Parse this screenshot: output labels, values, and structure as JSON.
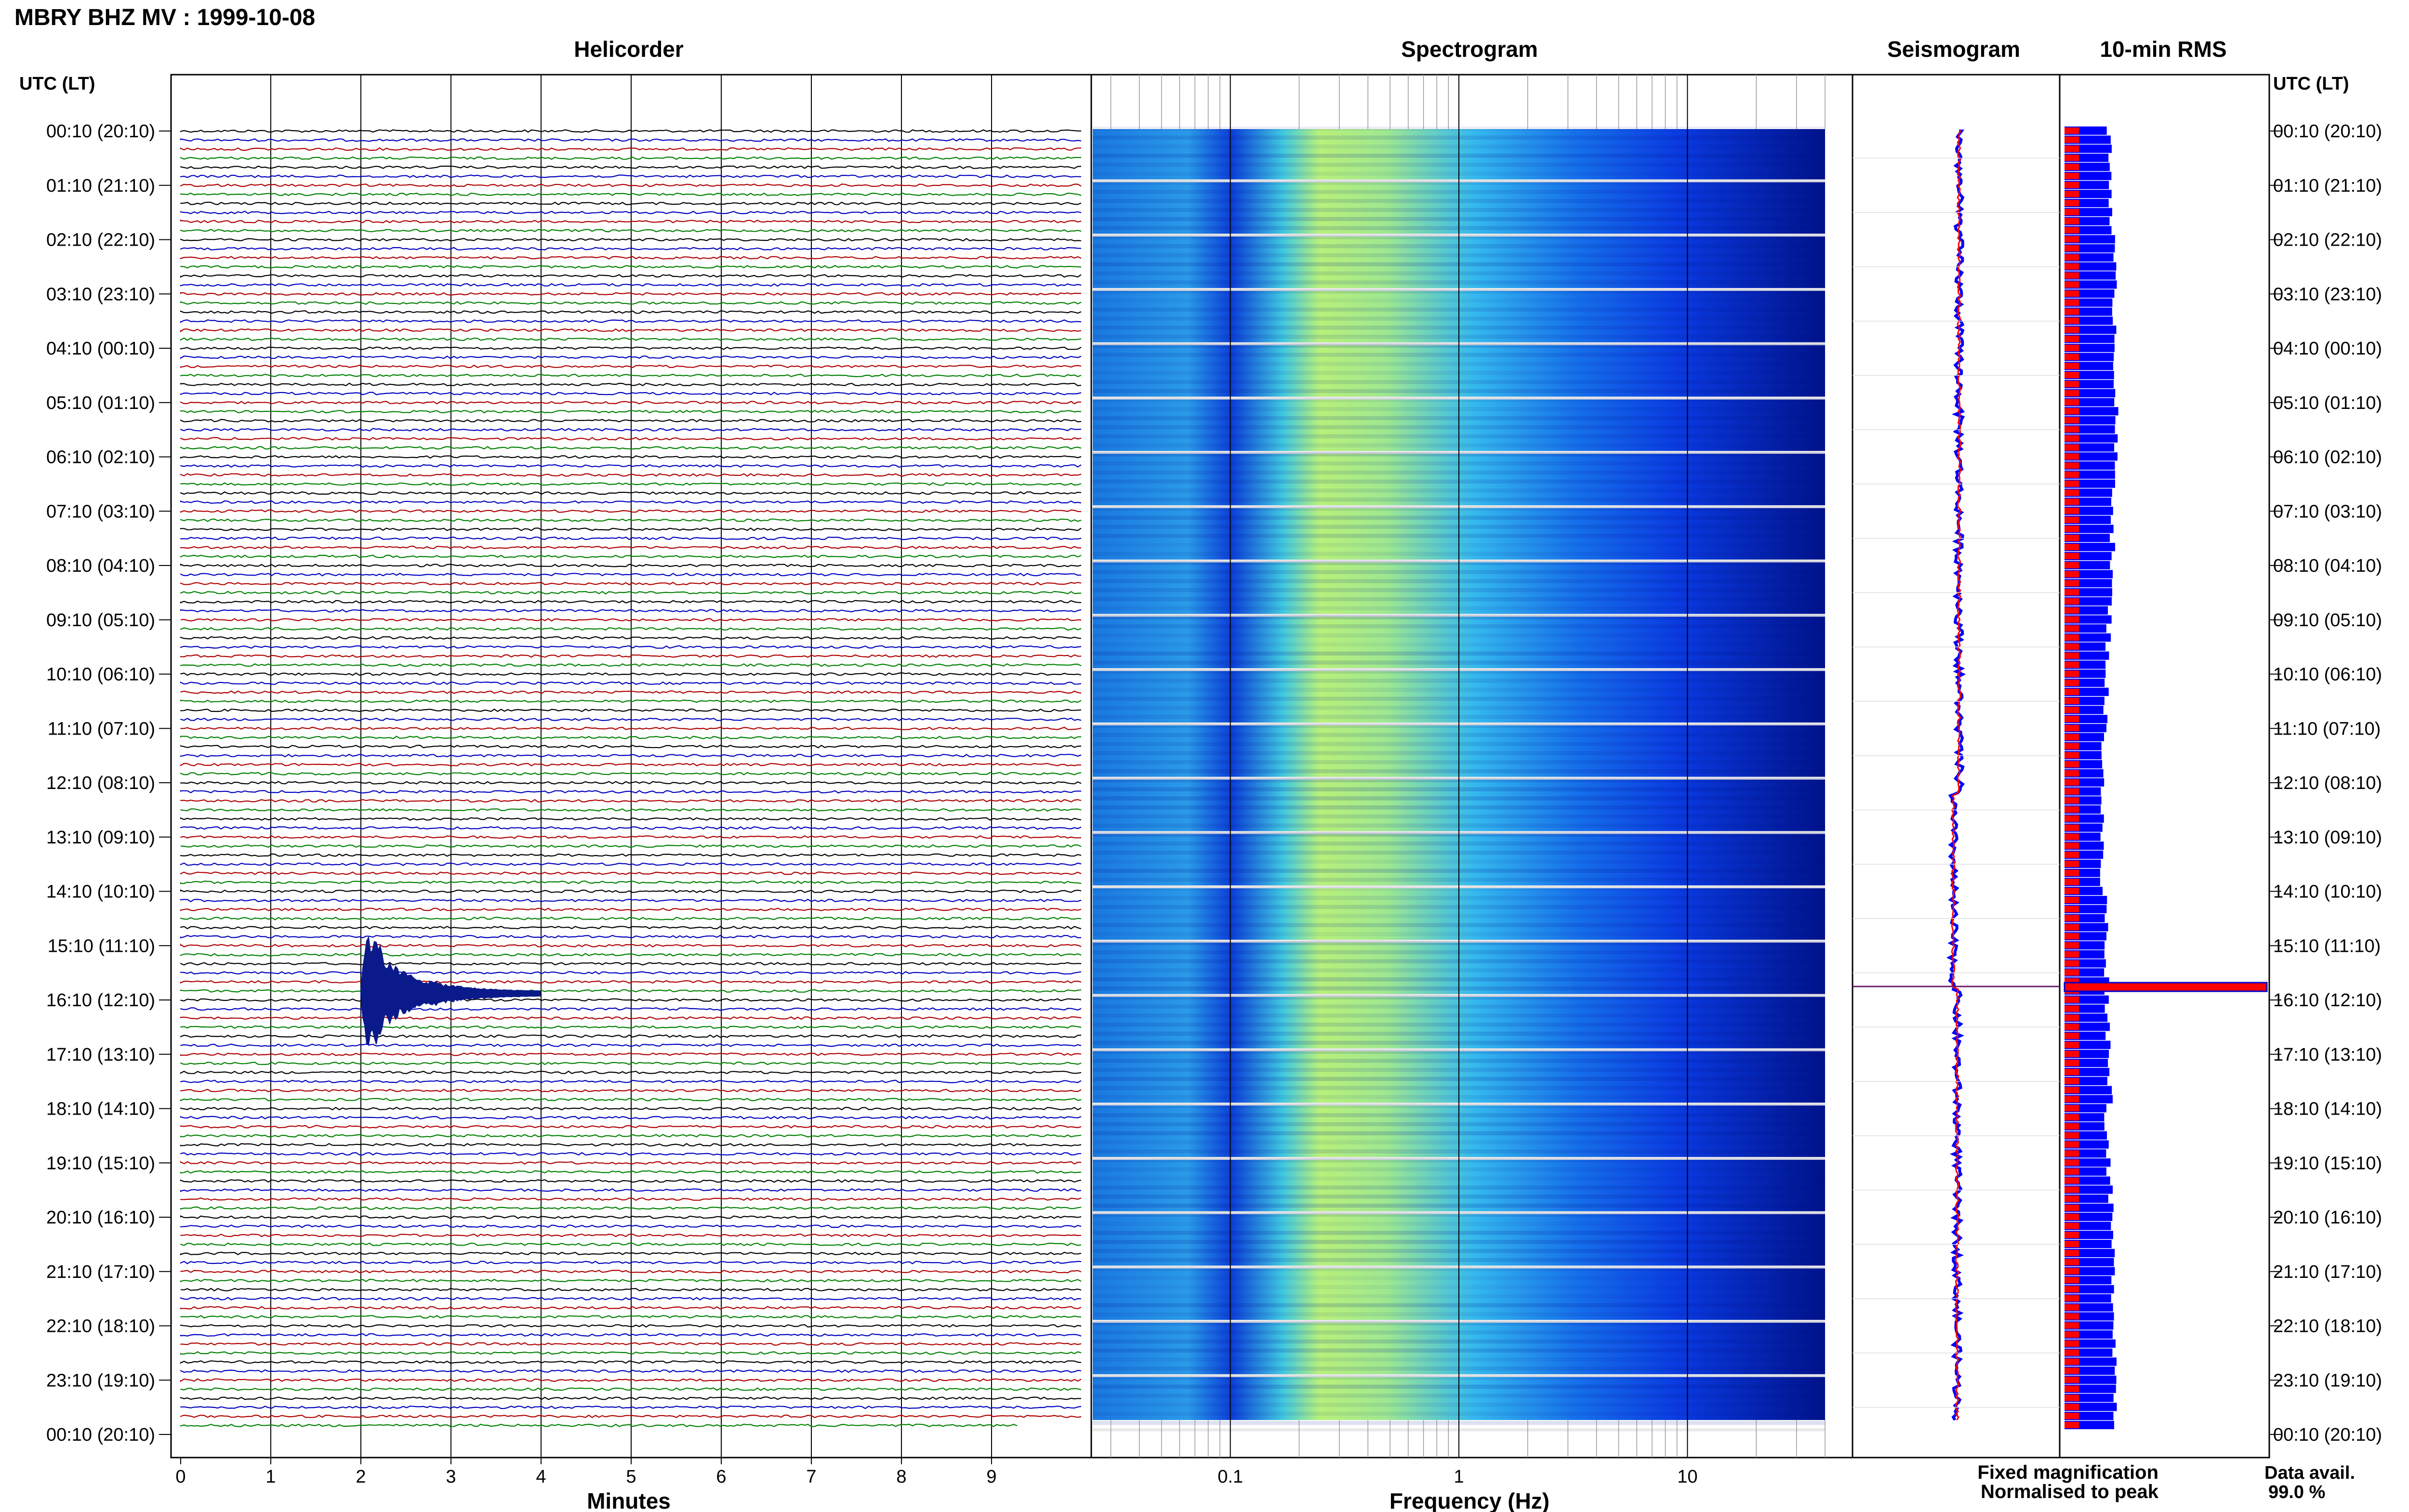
{
  "header": {
    "title": "MBRY BHZ MV : 1999-10-08"
  },
  "panels": {
    "helicorder": "Helicorder",
    "spectrogram": "Spectrogram",
    "seismogram": "Seismogram",
    "rms": "10-min RMS"
  },
  "axes": {
    "left_time_header": "UTC (LT)",
    "right_time_header": "UTC (LT)",
    "minutes_label": "Minutes",
    "frequency_label": "Frequency (Hz)",
    "minute_ticks": [
      "0",
      "1",
      "2",
      "3",
      "4",
      "5",
      "6",
      "7",
      "8",
      "9"
    ],
    "frequency_ticks": [
      "0.1",
      "1",
      "10"
    ],
    "time_ticks": [
      "00:10 (20:10)",
      "01:10 (21:10)",
      "02:10 (22:10)",
      "03:10 (23:10)",
      "04:10 (00:10)",
      "05:10 (01:10)",
      "06:10 (02:10)",
      "07:10 (03:10)",
      "08:10 (04:10)",
      "09:10 (05:10)",
      "10:10 (06:10)",
      "11:10 (07:10)",
      "12:10 (08:10)",
      "13:10 (09:10)",
      "14:10 (10:10)",
      "15:10 (11:10)",
      "16:10 (12:10)",
      "17:10 (13:10)",
      "18:10 (14:10)",
      "19:10 (15:10)",
      "20:10 (16:10)",
      "21:10 (17:10)",
      "22:10 (18:10)",
      "23:10 (19:10)",
      "00:10 (20:10)"
    ]
  },
  "legend": {
    "fixed": "Fixed magnification",
    "fixed_color": "#0000ff",
    "normalised": "Normalised to peak",
    "normalised_color": "#ff0000"
  },
  "availability": {
    "label": "Data avail.",
    "value": "99.0 %"
  },
  "chart_data": {
    "type": "helicorder",
    "trace_colors": [
      "#000000",
      "#0000c0",
      "#b00000",
      "#008000"
    ],
    "rows": 144,
    "minutes_per_row": 10,
    "event": {
      "time_utc": "~15:52",
      "minute": 2.0,
      "duration_min": 2.0
    },
    "spectrogram_freq_range_hz": [
      0.025,
      40
    ],
    "spectrogram_colormap": [
      "#0000a0",
      "#0030e0",
      "#1a80f0",
      "#30c0e8",
      "#80e0a0",
      "#e0f060"
    ],
    "rms_spike_time_utc": "16:00"
  }
}
